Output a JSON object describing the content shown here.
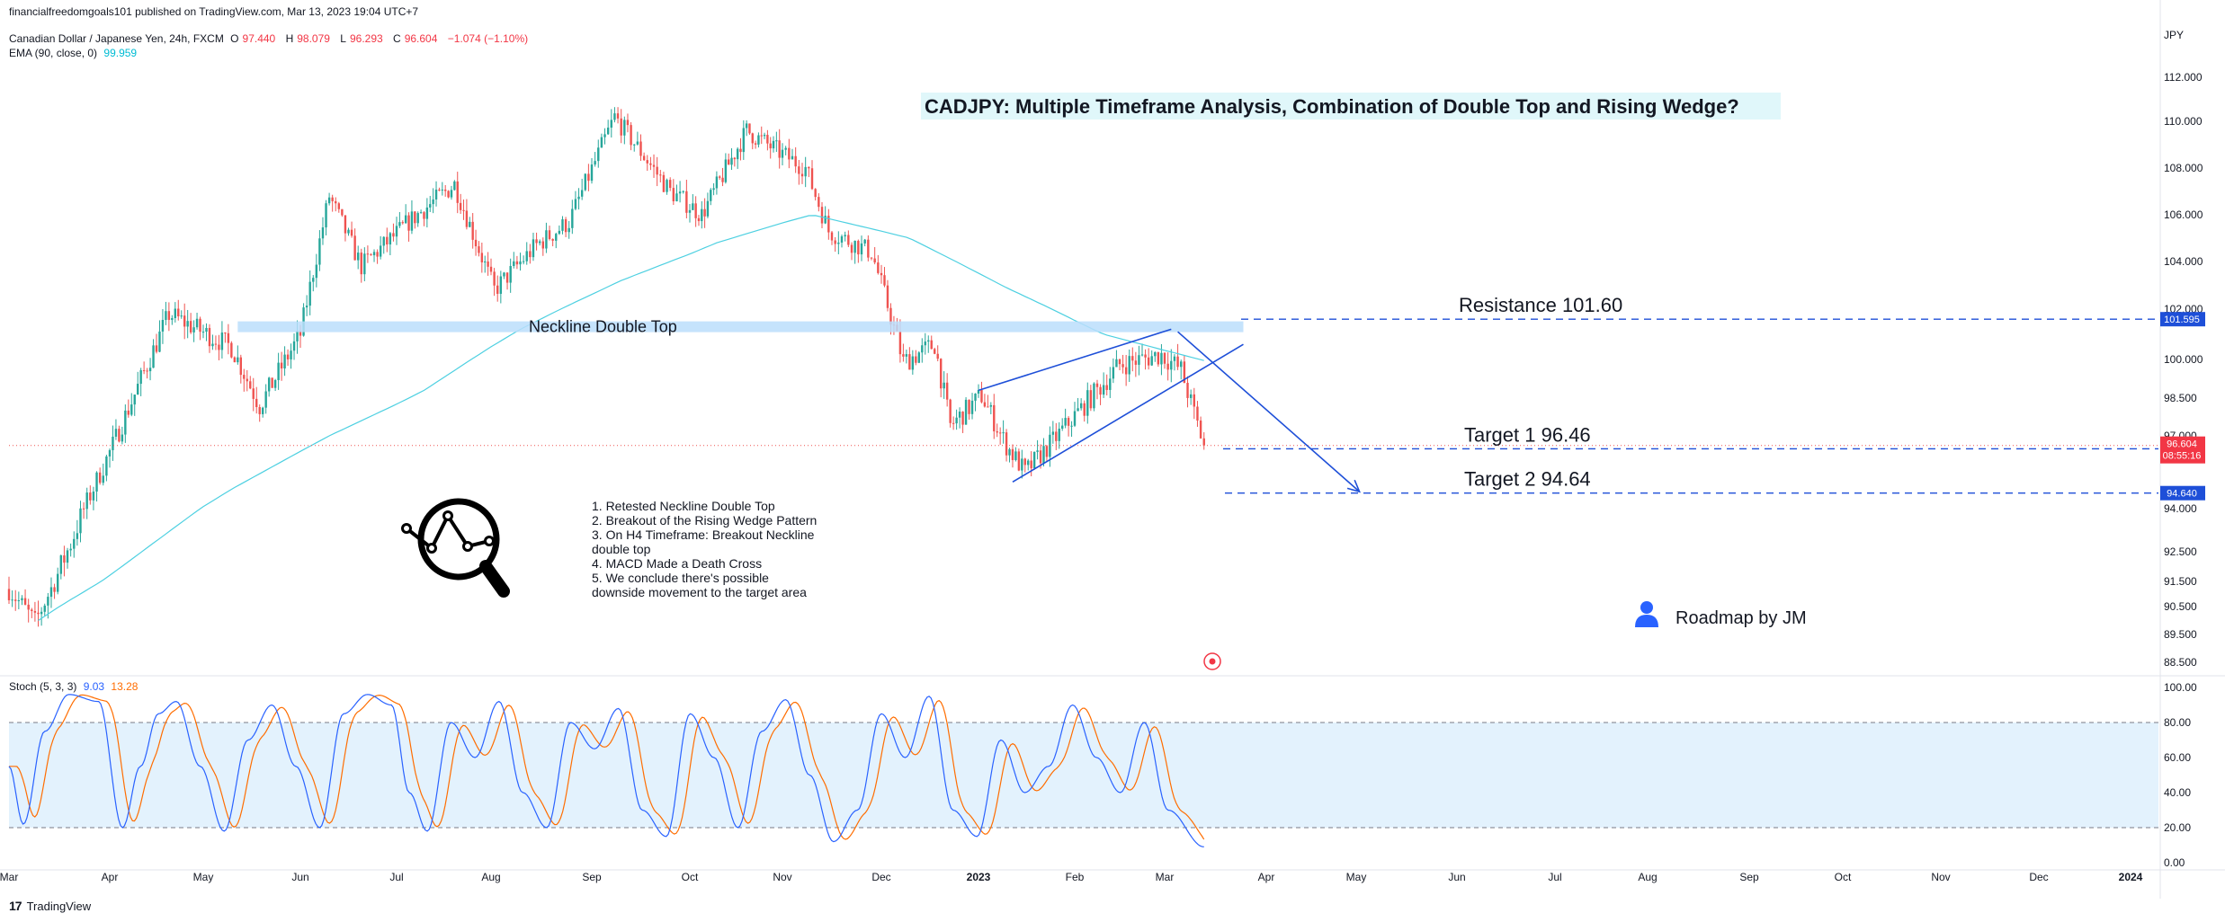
{
  "header": {
    "published": "financialfreedomgoals101 published on TradingView.com, Mar 13, 2023 19:04 UTC+7",
    "symbol": "Canadian Dollar / Japanese Yen, 24h, FXCM",
    "ohlc": {
      "o_label": "O",
      "o": "97.440",
      "h_label": "H",
      "h": "98.079",
      "l_label": "L",
      "l": "96.293",
      "c_label": "C",
      "c": "96.604",
      "change": "−1.074 (−1.10%)"
    },
    "ema_label": "EMA (90, close, 0)",
    "ema_value": "99.959",
    "stoch_label": "Stoch (5, 3, 3)",
    "stoch_k": "9.03",
    "stoch_d": "13.28",
    "currency": "JPY"
  },
  "footer": {
    "brand": "TradingView",
    "logo": "17"
  },
  "colors": {
    "up": "#26a69a",
    "down": "#ef5350",
    "ema": "#4dd0e1",
    "drawing": "#1e4fd8",
    "stoch_k": "#2962ff",
    "stoch_d": "#ff6d00",
    "band": "#e3f2fd",
    "neckline": "#bbdefb"
  },
  "chart_data": [
    {
      "type": "candlestick",
      "title": "CADJPY: Multiple Timeframe Analysis, Combination of Double Top and Rising Wedge?",
      "x_labels": [
        "Mar",
        "Apr",
        "May",
        "Jun",
        "Jul",
        "Aug",
        "Sep",
        "Oct",
        "Nov",
        "Dec",
        "2023",
        "Feb",
        "Mar",
        "Apr",
        "May",
        "Jun",
        "Jul",
        "Aug",
        "Sep",
        "Oct",
        "Nov",
        "Dec",
        "2024"
      ],
      "y_ticks": [
        "112.000",
        "110.000",
        "108.000",
        "106.000",
        "104.000",
        "102.000",
        "100.000",
        "98.500",
        "97.000",
        "94.000",
        "92.500",
        "91.500",
        "90.500",
        "89.500",
        "88.500"
      ],
      "ylim": [
        88,
        113
      ],
      "price_anchors": [
        {
          "date": "2022-03-01",
          "price": 91.2
        },
        {
          "date": "2022-03-09",
          "price": 89.9
        },
        {
          "date": "2022-03-20",
          "price": 92.8
        },
        {
          "date": "2022-04-05",
          "price": 97.5
        },
        {
          "date": "2022-04-20",
          "price": 101.8
        },
        {
          "date": "2022-05-10",
          "price": 100.5
        },
        {
          "date": "2022-05-19",
          "price": 98.2
        },
        {
          "date": "2022-06-01",
          "price": 101.0
        },
        {
          "date": "2022-06-10",
          "price": 106.8
        },
        {
          "date": "2022-06-20",
          "price": 103.8
        },
        {
          "date": "2022-07-05",
          "price": 105.7
        },
        {
          "date": "2022-07-20",
          "price": 107.3
        },
        {
          "date": "2022-08-02",
          "price": 102.8
        },
        {
          "date": "2022-08-15",
          "price": 104.7
        },
        {
          "date": "2022-08-25",
          "price": 105.7
        },
        {
          "date": "2022-09-08",
          "price": 110.2
        },
        {
          "date": "2022-09-25",
          "price": 107.0
        },
        {
          "date": "2022-10-05",
          "price": 106.0
        },
        {
          "date": "2022-10-20",
          "price": 109.6
        },
        {
          "date": "2022-11-08",
          "price": 108.0
        },
        {
          "date": "2022-11-15",
          "price": 105.3
        },
        {
          "date": "2022-11-28",
          "price": 104.4
        },
        {
          "date": "2022-12-08",
          "price": 99.9
        },
        {
          "date": "2022-12-18",
          "price": 100.6
        },
        {
          "date": "2022-12-23",
          "price": 97.4
        },
        {
          "date": "2023-01-02",
          "price": 98.6
        },
        {
          "date": "2023-01-10",
          "price": 96.6
        },
        {
          "date": "2023-01-16",
          "price": 95.5
        },
        {
          "date": "2023-02-01",
          "price": 97.8
        },
        {
          "date": "2023-02-15",
          "price": 99.8
        },
        {
          "date": "2023-02-28",
          "price": 100.2
        },
        {
          "date": "2023-03-06",
          "price": 99.6
        },
        {
          "date": "2023-03-13",
          "price": 96.604
        }
      ],
      "ema": {
        "name": "EMA (90, close, 0)",
        "anchors": [
          {
            "date": "2022-03-10",
            "price": 90.0
          },
          {
            "date": "2022-04-10",
            "price": 92.4
          },
          {
            "date": "2022-05-10",
            "price": 94.8
          },
          {
            "date": "2022-06-10",
            "price": 97.0
          },
          {
            "date": "2022-07-10",
            "price": 98.8
          },
          {
            "date": "2022-08-10",
            "price": 101.2
          },
          {
            "date": "2022-09-10",
            "price": 103.2
          },
          {
            "date": "2022-10-10",
            "price": 104.8
          },
          {
            "date": "2022-11-10",
            "price": 106.0
          },
          {
            "date": "2022-12-10",
            "price": 105.0
          },
          {
            "date": "2023-01-10",
            "price": 102.9
          },
          {
            "date": "2023-02-10",
            "price": 101.0
          },
          {
            "date": "2023-03-13",
            "price": 99.959
          }
        ]
      },
      "levels": [
        {
          "label": "Resistance 101.60",
          "price": 101.6,
          "tag": "101.595"
        },
        {
          "label": "Target 1  96.46",
          "price": 96.464,
          "tag": "96.464"
        },
        {
          "label": "Target 2  94.64",
          "price": 94.64,
          "tag": "94.640"
        }
      ],
      "last_price": {
        "price": 96.604,
        "tag": "96.604",
        "countdown": "08:55:16"
      },
      "neckline": {
        "label": "Neckline Double Top",
        "price": 101.3,
        "from": "2022-05-12",
        "to": "2023-03-25"
      },
      "wedge": {
        "upper": [
          {
            "date": "2023-01-01",
            "price": 98.8
          },
          {
            "date": "2023-03-03",
            "price": 101.2
          }
        ],
        "lower": [
          {
            "date": "2023-01-12",
            "price": 95.1
          },
          {
            "date": "2023-03-25",
            "price": 100.6
          }
        ]
      },
      "projection": [
        {
          "date": "2023-03-05",
          "price": 101.1
        },
        {
          "date": "2023-05-02",
          "price": 94.7
        }
      ],
      "notes": [
        "1. Retested Neckline Double Top",
        "2. Breakout of the Rising Wedge Pattern",
        "3. On H4 Timeframe: Breakout Neckline",
        "    double top",
        "4. MACD Made a Death Cross",
        "5.  We conclude there's possible",
        "downside movement to the target area"
      ],
      "signature": "Roadmap by JM"
    },
    {
      "type": "line",
      "title": "Stoch (5, 3, 3)",
      "ylim": [
        0,
        100
      ],
      "y_ticks": [
        "100.00",
        "80.00",
        "60.00",
        "40.00",
        "20.00",
        "0.00"
      ],
      "bands": [
        20,
        80
      ],
      "series": [
        {
          "name": "%K",
          "last": 9.03,
          "anchors": [
            [
              0,
              55
            ],
            [
              0.012,
              22
            ],
            [
              0.03,
              75
            ],
            [
              0.05,
              96
            ],
            [
              0.075,
              92
            ],
            [
              0.095,
              20
            ],
            [
              0.11,
              55
            ],
            [
              0.125,
              85
            ],
            [
              0.14,
              92
            ],
            [
              0.16,
              55
            ],
            [
              0.18,
              18
            ],
            [
              0.2,
              70
            ],
            [
              0.22,
              90
            ],
            [
              0.24,
              55
            ],
            [
              0.26,
              20
            ],
            [
              0.28,
              85
            ],
            [
              0.3,
              96
            ],
            [
              0.32,
              90
            ],
            [
              0.335,
              40
            ],
            [
              0.35,
              18
            ],
            [
              0.37,
              80
            ],
            [
              0.39,
              60
            ],
            [
              0.41,
              92
            ],
            [
              0.43,
              40
            ],
            [
              0.45,
              20
            ],
            [
              0.47,
              80
            ],
            [
              0.49,
              65
            ],
            [
              0.51,
              88
            ],
            [
              0.53,
              30
            ],
            [
              0.55,
              15
            ],
            [
              0.57,
              85
            ],
            [
              0.59,
              60
            ],
            [
              0.61,
              20
            ],
            [
              0.63,
              75
            ],
            [
              0.65,
              93
            ],
            [
              0.67,
              50
            ],
            [
              0.69,
              12
            ],
            [
              0.71,
              30
            ],
            [
              0.73,
              85
            ],
            [
              0.75,
              60
            ],
            [
              0.77,
              95
            ],
            [
              0.79,
              30
            ],
            [
              0.81,
              15
            ],
            [
              0.83,
              70
            ],
            [
              0.85,
              40
            ],
            [
              0.87,
              55
            ],
            [
              0.89,
              90
            ],
            [
              0.91,
              60
            ],
            [
              0.93,
              40
            ],
            [
              0.95,
              80
            ],
            [
              0.97,
              30
            ],
            [
              1.0,
              9.03
            ]
          ]
        },
        {
          "name": "%D",
          "last": 13.28
        }
      ]
    }
  ]
}
